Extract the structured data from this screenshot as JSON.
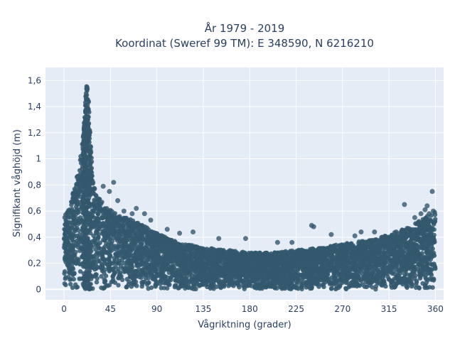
{
  "chart_data": {
    "type": "scatter",
    "title": "År 1979 - 2019",
    "subtitle": "Koordinat (Sweref 99 TM): E 348590, N 6216210",
    "xlabel": "Vågriktning (grader)",
    "ylabel": "Signifikant våghöjd (m)",
    "xlim": [
      -18,
      368
    ],
    "ylim": [
      -0.08,
      1.7
    ],
    "x_ticks": [
      0,
      45,
      90,
      135,
      180,
      225,
      270,
      315,
      360
    ],
    "x_tick_labels": [
      "0",
      "45",
      "90",
      "135",
      "180",
      "225",
      "270",
      "315",
      "360"
    ],
    "y_ticks": [
      0,
      0.2,
      0.4,
      0.6,
      0.8,
      1.0,
      1.2,
      1.4,
      1.6
    ],
    "y_tick_labels": [
      "0",
      "0,2",
      "0,4",
      "0,6",
      "0,8",
      "1",
      "1,2",
      "1,4",
      "1,6"
    ],
    "grid": true,
    "marker_color": "#34586e",
    "plot_background": "#e5ecf6",
    "upper_envelope": [
      {
        "x": 0,
        "y": 0.55
      },
      {
        "x": 5,
        "y": 0.65
      },
      {
        "x": 10,
        "y": 0.78
      },
      {
        "x": 15,
        "y": 0.95
      },
      {
        "x": 18,
        "y": 1.15
      },
      {
        "x": 20,
        "y": 1.35
      },
      {
        "x": 21,
        "y": 1.5
      },
      {
        "x": 22,
        "y": 1.63
      },
      {
        "x": 24,
        "y": 1.45
      },
      {
        "x": 26,
        "y": 1.1
      },
      {
        "x": 28,
        "y": 0.85
      },
      {
        "x": 32,
        "y": 0.72
      },
      {
        "x": 40,
        "y": 0.65
      },
      {
        "x": 50,
        "y": 0.58
      },
      {
        "x": 60,
        "y": 0.55
      },
      {
        "x": 75,
        "y": 0.5
      },
      {
        "x": 90,
        "y": 0.43
      },
      {
        "x": 110,
        "y": 0.36
      },
      {
        "x": 135,
        "y": 0.32
      },
      {
        "x": 160,
        "y": 0.3
      },
      {
        "x": 180,
        "y": 0.28
      },
      {
        "x": 200,
        "y": 0.28
      },
      {
        "x": 225,
        "y": 0.3
      },
      {
        "x": 250,
        "y": 0.32
      },
      {
        "x": 270,
        "y": 0.35
      },
      {
        "x": 300,
        "y": 0.38
      },
      {
        "x": 315,
        "y": 0.42
      },
      {
        "x": 335,
        "y": 0.48
      },
      {
        "x": 350,
        "y": 0.55
      },
      {
        "x": 360,
        "y": 0.6
      }
    ],
    "outliers": [
      {
        "x": 28,
        "y": 0.82
      },
      {
        "x": 38,
        "y": 0.79
      },
      {
        "x": 48,
        "y": 0.82
      },
      {
        "x": 44,
        "y": 0.75
      },
      {
        "x": 52,
        "y": 0.68
      },
      {
        "x": 58,
        "y": 0.6
      },
      {
        "x": 66,
        "y": 0.58
      },
      {
        "x": 70,
        "y": 0.62
      },
      {
        "x": 78,
        "y": 0.58
      },
      {
        "x": 84,
        "y": 0.53
      },
      {
        "x": 100,
        "y": 0.46
      },
      {
        "x": 112,
        "y": 0.43
      },
      {
        "x": 125,
        "y": 0.44
      },
      {
        "x": 150,
        "y": 0.39
      },
      {
        "x": 176,
        "y": 0.39
      },
      {
        "x": 207,
        "y": 0.36
      },
      {
        "x": 221,
        "y": 0.36
      },
      {
        "x": 242,
        "y": 0.48
      },
      {
        "x": 240,
        "y": 0.49
      },
      {
        "x": 259,
        "y": 0.42
      },
      {
        "x": 282,
        "y": 0.41
      },
      {
        "x": 288,
        "y": 0.44
      },
      {
        "x": 301,
        "y": 0.44
      },
      {
        "x": 322,
        "y": 0.44
      },
      {
        "x": 330,
        "y": 0.65
      },
      {
        "x": 336,
        "y": 0.45
      },
      {
        "x": 340,
        "y": 0.55
      },
      {
        "x": 344,
        "y": 0.52
      },
      {
        "x": 346,
        "y": 0.58
      },
      {
        "x": 350,
        "y": 0.61
      },
      {
        "x": 352,
        "y": 0.64
      },
      {
        "x": 354,
        "y": 0.58
      },
      {
        "x": 357,
        "y": 0.75
      },
      {
        "x": 358,
        "y": 0.6
      }
    ]
  }
}
